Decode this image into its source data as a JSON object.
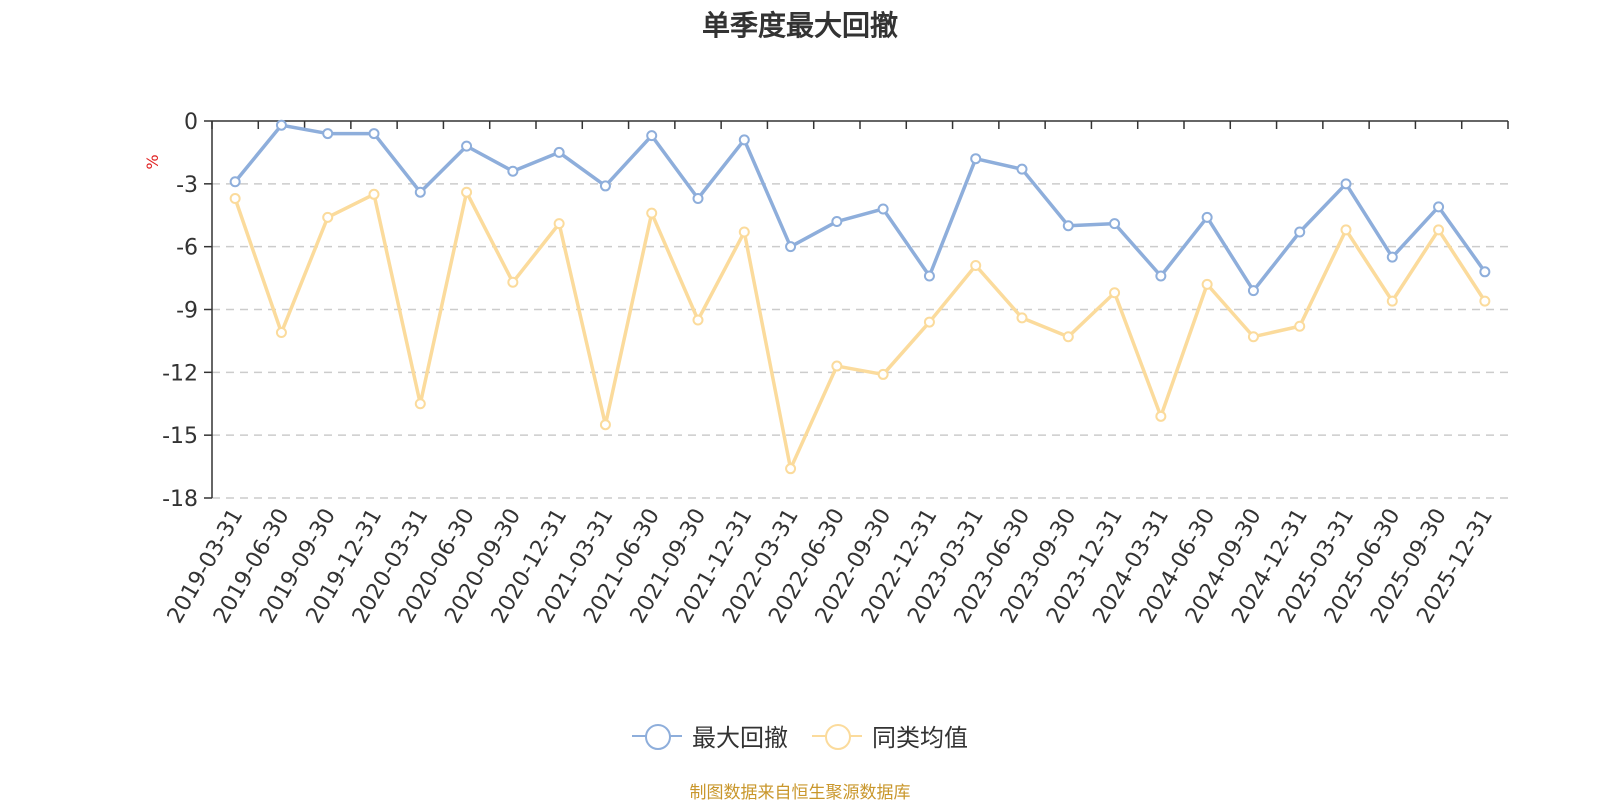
{
  "title": "单季度最大回撤",
  "source_note": "制图数据来自恒生聚源数据库",
  "colors": {
    "series1": "#8eaedb",
    "series2": "#fbdb9c",
    "ylabel": "#e02020",
    "grid": "#cccccc",
    "axis": "#333333",
    "text": "#333333",
    "note": "#c9972c"
  },
  "legend": {
    "items": [
      {
        "label": "最大回撤",
        "icon": "circle-line-icon"
      },
      {
        "label": "同类均值",
        "icon": "circle-line-icon"
      }
    ]
  },
  "chart_data": {
    "type": "line",
    "title": "单季度最大回撤",
    "xlabel": "",
    "ylabel": "%",
    "ylim": [
      -18,
      0
    ],
    "yticks": [
      0,
      -3,
      -6,
      -9,
      -12,
      -15,
      -18
    ],
    "grid": true,
    "legend_position": "bottom",
    "categories": [
      "2019-03-31",
      "2019-06-30",
      "2019-09-30",
      "2019-12-31",
      "2020-03-31",
      "2020-06-30",
      "2020-09-30",
      "2020-12-31",
      "2021-03-31",
      "2021-06-30",
      "2021-09-30",
      "2021-12-31",
      "2022-03-31",
      "2022-06-30",
      "2022-09-30",
      "2022-12-31",
      "2023-03-31",
      "2023-06-30",
      "2023-09-30",
      "2023-12-31",
      "2024-03-31",
      "2024-06-30",
      "2024-09-30",
      "2024-12-31",
      "2025-03-31",
      "2025-06-30",
      "2025-09-30",
      "2025-12-31"
    ],
    "series": [
      {
        "name": "最大回撤",
        "values": [
          -2.9,
          -0.2,
          -0.6,
          -0.6,
          -3.4,
          -1.2,
          -2.4,
          -1.5,
          -3.1,
          -0.7,
          -3.7,
          -0.9,
          -6.0,
          -4.8,
          -4.2,
          -7.4,
          -1.8,
          -2.3,
          -5.0,
          -4.9,
          -7.4,
          -4.6,
          -8.1,
          -5.3,
          -3.0,
          -6.5,
          -4.1,
          -7.2
        ]
      },
      {
        "name": "同类均值",
        "values": [
          -3.7,
          -10.1,
          -4.6,
          -3.5,
          -13.5,
          -3.4,
          -7.7,
          -4.9,
          -14.5,
          -4.4,
          -9.5,
          -5.3,
          -16.6,
          -11.7,
          -12.1,
          -9.6,
          -6.9,
          -9.4,
          -10.3,
          -8.2,
          -14.1,
          -7.8,
          -10.3,
          -9.8,
          -5.2,
          -8.6,
          -5.2,
          -8.6
        ]
      }
    ]
  }
}
